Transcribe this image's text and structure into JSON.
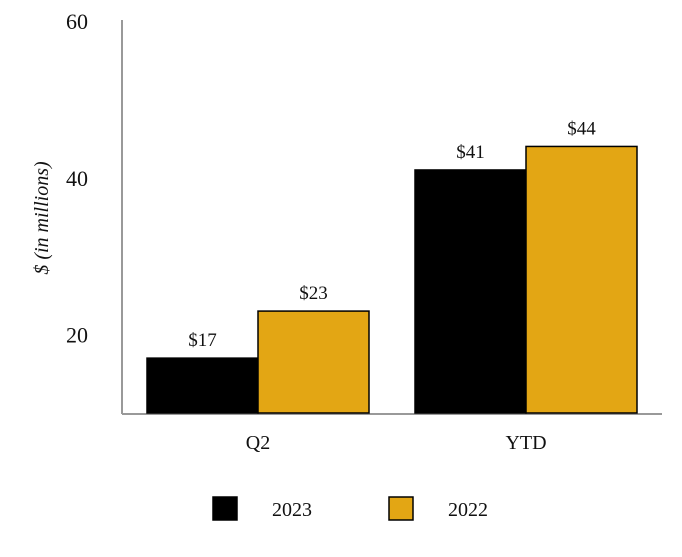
{
  "chart_data": {
    "type": "bar",
    "title": "",
    "xlabel": "",
    "ylabel": "$ (in millions)",
    "ylim": [
      10,
      60
    ],
    "yticks": [
      20,
      40,
      60
    ],
    "grid": false,
    "categories": [
      "Q2",
      "YTD"
    ],
    "series": [
      {
        "name": "2023",
        "values": [
          17,
          41
        ],
        "labels": [
          "$17",
          "$41"
        ],
        "color": "#000000"
      },
      {
        "name": "2022",
        "values": [
          23,
          44
        ],
        "labels": [
          "$23",
          "$44"
        ],
        "color": "#E3A614"
      }
    ],
    "legend": "bottom"
  }
}
